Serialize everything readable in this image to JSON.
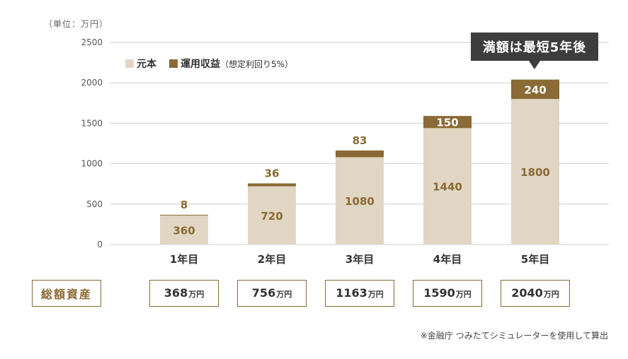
{
  "unit_label": "（単位：万円）",
  "callout": "満額は最短5年後",
  "legend": {
    "principal": "元本",
    "returns": "運用収益",
    "returns_note": "（想定利回り5%）"
  },
  "colors": {
    "principal": "#e0d6c3",
    "returns": "#8a6a35",
    "axis_text": "#555555",
    "grid": "#cfcfcf",
    "value_text": "#8a6a35"
  },
  "total_label": "総額資産",
  "totals": [
    {
      "num": "368",
      "unit": "万円"
    },
    {
      "num": "756",
      "unit": "万円"
    },
    {
      "num": "1163",
      "unit": "万円"
    },
    {
      "num": "1590",
      "unit": "万円"
    },
    {
      "num": "2040",
      "unit": "万円"
    }
  ],
  "footnote": "※金融庁 つみたてシミュレーターを使用して算出",
  "chart_data": {
    "type": "bar",
    "stacked": true,
    "categories": [
      "1年目",
      "2年目",
      "3年目",
      "4年目",
      "5年目"
    ],
    "series": [
      {
        "name": "元本",
        "values": [
          360,
          720,
          1080,
          1440,
          1800
        ]
      },
      {
        "name": "運用収益",
        "values": [
          8,
          36,
          83,
          150,
          240
        ]
      }
    ],
    "y_ticks": [
      0,
      500,
      1000,
      1500,
      2000,
      2500
    ],
    "ylim": [
      0,
      2500
    ],
    "grid": true,
    "legend_position": "top-left"
  }
}
